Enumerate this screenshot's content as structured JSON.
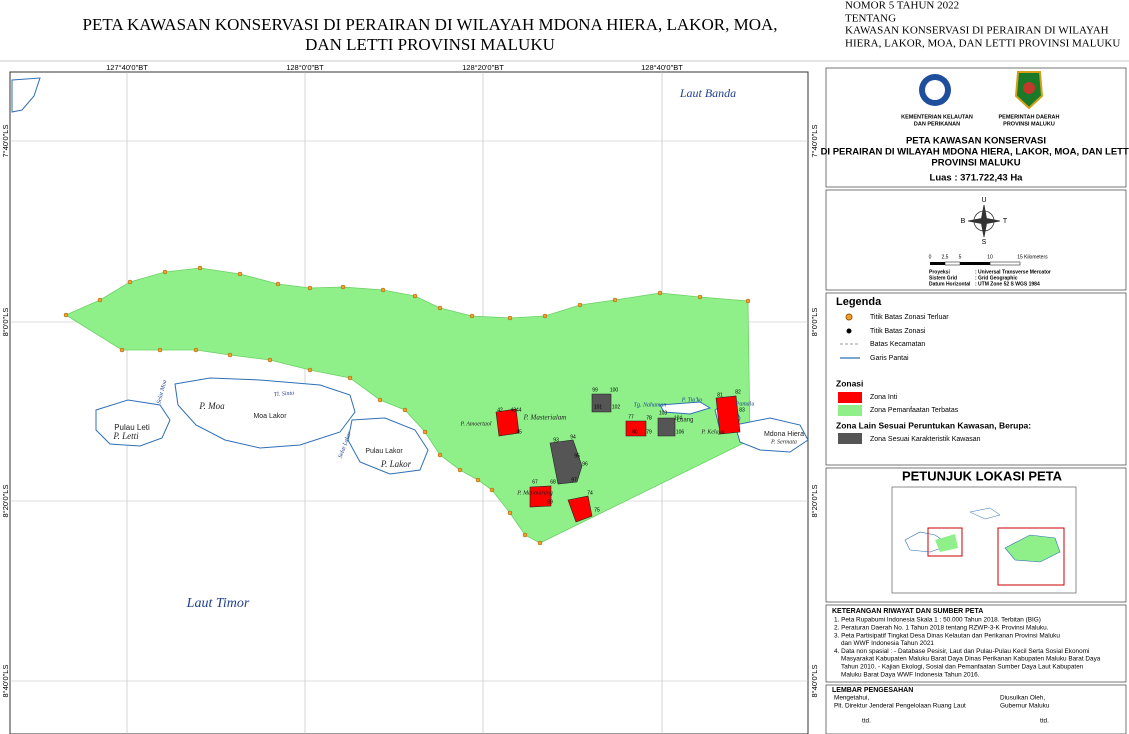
{
  "header": {
    "title": [
      "PETA KAWASAN KONSERVASI DI PERAIRAN DI WILAYAH MDONA HIERA, LAKOR, MOA,",
      "DAN LETTI PROVINSI MALUKU"
    ],
    "decree": [
      "NOMOR 5 TAHUN 2022",
      "TENTANG",
      "KAWASAN KONSERVASI DI PERAIRAN DI WILAYAH",
      "HIERA, LAKOR, MOA, DAN LETTI PROVINSI MALUKU"
    ]
  },
  "map": {
    "longitudes": [
      "127°40'0\"BT",
      "128°0'0\"BT",
      "128°20'0\"BT",
      "128°40'0\"BT"
    ],
    "latitudes": [
      "7°40'0\"LS",
      "8°0'0\"LS",
      "8°20'0\"LS",
      "8°40'0\"LS"
    ],
    "places": [
      "Laut Banda",
      "Laut Timor",
      "Pulau Leti",
      "P. Letti",
      "P. Moa",
      "Moa Lakor",
      "Tl. Sinta",
      "Selat Moa",
      "Pulau Lakor",
      "P. Lakor",
      "Selat Lakor",
      "P. Masterialam",
      "P. Amoertaol",
      "Tg. Nahaman",
      "P. Tia'ko",
      "Luang",
      "P. Kelapa",
      "Pamalu",
      "Mdona Hiera",
      "P. Sermata",
      "P. Metimarang"
    ],
    "zone_labels": [
      "42",
      "4344",
      "45",
      "99",
      "100",
      "101",
      "102",
      "77",
      "78",
      "79",
      "80",
      "81",
      "82",
      "83",
      "103",
      "104",
      "106",
      "93",
      "94",
      "95",
      "96",
      "97",
      "67",
      "68",
      "69",
      "74",
      "75"
    ]
  },
  "panel": {
    "logos": [
      "KEMENTERIAN KELAUTAN",
      "DAN PERIKANAN",
      "PEMERINTAH DAERAH",
      "PROVINSI MALUKU"
    ],
    "map_title": [
      "PETA KAWASAN KONSERVASI",
      "DI PERAIRAN DI WILAYAH MDONA HIERA, LAKOR, MOA, DAN LETTI",
      "PROVINSI MALUKU",
      "Luas : 371.722,43 Ha"
    ],
    "compass": [
      "U",
      "S",
      "B",
      "T"
    ],
    "scale": [
      "0",
      "2,5",
      "5",
      "10",
      "15",
      "Kilometers"
    ],
    "projection": [
      [
        "Proyeksi",
        ": Universal Transverse Mercator"
      ],
      [
        "Sistem Grid",
        ": Grid Geographic"
      ],
      [
        "Datum Horizontal",
        ": UTM Zone 52 S WGS 1984"
      ]
    ],
    "legend_title": "Legenda",
    "legend": [
      "Titik Batas Zonasi Terluar",
      "Titik Batas Zonasi",
      "Batas Kecamatan",
      "Garis Pantai"
    ],
    "zonasi_title": "Zonasi",
    "zonasi": [
      "Zona Inti",
      "Zona Pemanfaatan Terbatas"
    ],
    "other_title": "Zona Lain Sesuai Peruntukan Kawasan, Berupa:",
    "other": [
      "Zona Sesuai Karakteristik Kawasan"
    ],
    "locator_title": "PETUNJUK LOKASI PETA",
    "notes_title": "KETERANGAN RIWAYAT DAN SUMBER PETA",
    "notes": [
      "1. Peta Rupabumi Indonesia Skala 1 : 50.000 Tahun 2018. Terbitan (BIG)",
      "2. Peraturan Daerah No. 1 Tahun 2018  tentang RZWP-3-K Provinsi Maluku.",
      "3. Peta Partisipatif Tingkat Desa Dinas Kelautan dan Perikanan Provinsi Maluku",
      "dan WWF Indonesia Tahun 2021",
      "4. Data non spasial : - Database Pesisir, Laut dan Pulau-Pulau Kecil Serta Sosial Ekonomi",
      "Masyarakat Kabupaten Maluku Barat Daya Dinas Perikanan Kabupaten Maluku Barat Daya",
      "Tahun 2010. - Kajian Ekologi, Sosial dan Pemanfaatan Sumber Daya Laut Kabupaten",
      "Maluku Barat Daya WWF Indonesia Tahun 2016."
    ],
    "approval_title": "LEMBAR PENGESAHAN",
    "approval_left": [
      "Mengetahui,",
      "Plt. Direktur Jenderal Pengelolaan Ruang Laut",
      "ttd."
    ],
    "approval_right": [
      "Diusulkan Oleh,",
      "Gubernur Maluku",
      "ttd."
    ]
  }
}
